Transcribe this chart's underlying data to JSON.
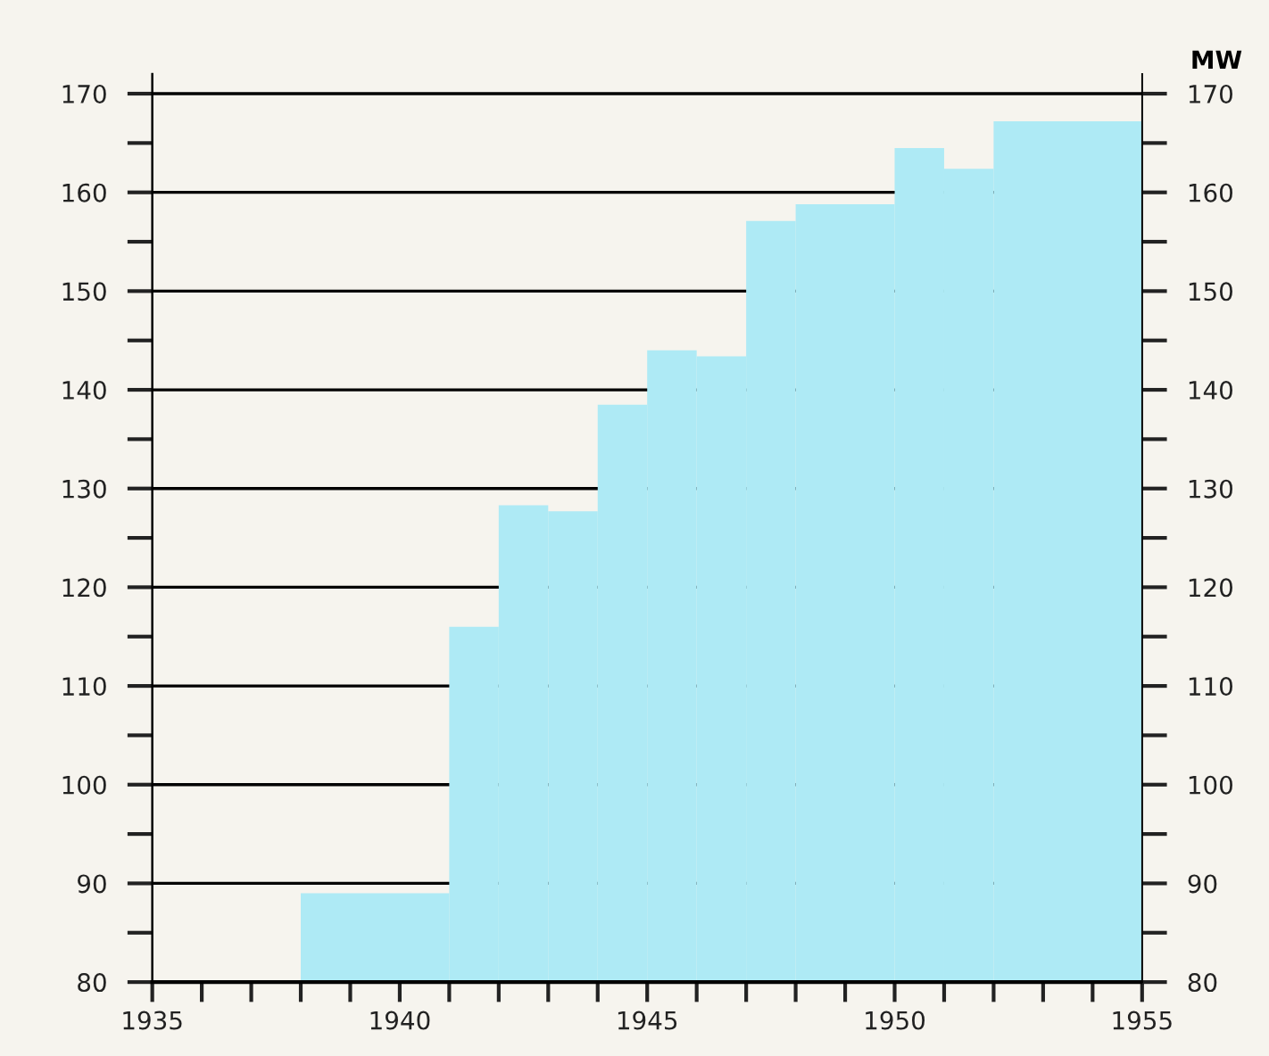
{
  "chart_data": {
    "type": "histogram",
    "bins": [
      1938,
      1941,
      1942,
      1943,
      1944,
      1945,
      1946,
      1947,
      1948,
      1950,
      1951,
      1952,
      1955
    ],
    "values": [
      89,
      116,
      128.3,
      127.7,
      138.5,
      144,
      143.4,
      157.1,
      158.8,
      164.5,
      162.4,
      167.2
    ],
    "color": "#aeeaf5",
    "y2label": "MW",
    "xlim": [
      1935,
      1955
    ],
    "xticks": [
      1935,
      {
        "value": 1936,
        "label": null
      },
      {
        "value": 1937,
        "label": null
      },
      {
        "value": 1938,
        "label": null
      },
      {
        "value": 1939,
        "label": null
      },
      1940,
      {
        "value": 1941,
        "label": null
      },
      {
        "value": 1942,
        "label": null
      },
      {
        "value": 1943,
        "label": null
      },
      {
        "value": 1944,
        "label": null
      },
      1945,
      {
        "value": 1946,
        "label": null
      },
      {
        "value": 1947,
        "label": null
      },
      {
        "value": 1948,
        "label": null
      },
      {
        "value": 1949,
        "label": null
      },
      1950,
      {
        "value": 1951,
        "label": null
      },
      {
        "value": 1952,
        "label": null
      },
      {
        "value": 1953,
        "label": null
      },
      {
        "value": 1954,
        "label": null
      },
      1955
    ],
    "ylim": [
      80,
      172
    ],
    "yticks": [
      80,
      {
        "value": 85,
        "label": null
      },
      90,
      {
        "value": 95,
        "label": null
      },
      100,
      {
        "value": 105,
        "label": null
      },
      110,
      {
        "value": 115,
        "label": null
      },
      120,
      {
        "value": 125,
        "label": null
      },
      130,
      {
        "value": 135,
        "label": null
      },
      140,
      {
        "value": 145,
        "label": null
      },
      150,
      {
        "value": 155,
        "label": null
      },
      160,
      {
        "value": 165,
        "label": null
      },
      170
    ],
    "y2lim": [
      80,
      172
    ],
    "y2ticks": [
      80,
      {
        "value": 85,
        "label": null
      },
      90,
      {
        "value": 95,
        "label": null
      },
      100,
      {
        "value": 105,
        "label": null
      },
      110,
      {
        "value": 115,
        "label": null
      },
      120,
      {
        "value": 125,
        "label": null
      },
      130,
      {
        "value": 135,
        "label": null
      },
      140,
      {
        "value": 145,
        "label": null
      },
      150,
      {
        "value": 155,
        "label": null
      },
      160,
      {
        "value": 165,
        "label": null
      },
      170
    ],
    "grid": "y"
  }
}
